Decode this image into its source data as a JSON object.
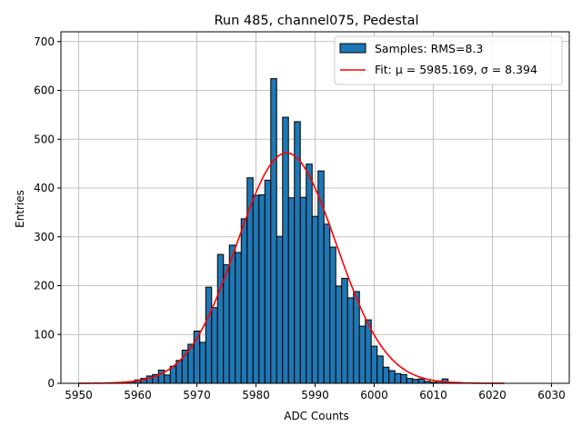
{
  "chart_data": {
    "type": "bar",
    "title": "Run 485, channel075, Pedestal",
    "xlabel": "ADC Counts",
    "ylabel": "Entries",
    "xlim": [
      5947,
      6033
    ],
    "ylim": [
      0,
      720
    ],
    "xticks": [
      5950,
      5960,
      5970,
      5980,
      5990,
      6000,
      6010,
      6020,
      6030
    ],
    "yticks": [
      0,
      100,
      200,
      300,
      400,
      500,
      600,
      700
    ],
    "grid": true,
    "legend_position": "top-right",
    "bin_width": 1,
    "series": [
      {
        "name": "Samples: RMS=8.3",
        "kind": "histogram",
        "color": "#1f77b4",
        "edgecolor": "#000000",
        "bins": [
          [
            5957,
            1
          ],
          [
            5958,
            3
          ],
          [
            5959,
            3
          ],
          [
            5960,
            7
          ],
          [
            5961,
            10
          ],
          [
            5962,
            15
          ],
          [
            5963,
            18
          ],
          [
            5964,
            27
          ],
          [
            5965,
            17
          ],
          [
            5966,
            35
          ],
          [
            5967,
            47
          ],
          [
            5968,
            68
          ],
          [
            5969,
            80
          ],
          [
            5970,
            107
          ],
          [
            5971,
            84
          ],
          [
            5972,
            197
          ],
          [
            5973,
            155
          ],
          [
            5974,
            264
          ],
          [
            5975,
            243
          ],
          [
            5976,
            283
          ],
          [
            5977,
            268
          ],
          [
            5978,
            337
          ],
          [
            5979,
            421
          ],
          [
            5980,
            385
          ],
          [
            5981,
            386
          ],
          [
            5982,
            416
          ],
          [
            5983,
            624
          ],
          [
            5984,
            301
          ],
          [
            5985,
            545
          ],
          [
            5986,
            380
          ],
          [
            5987,
            536
          ],
          [
            5988,
            381
          ],
          [
            5989,
            449
          ],
          [
            5990,
            342
          ],
          [
            5991,
            435
          ],
          [
            5992,
            326
          ],
          [
            5993,
            279
          ],
          [
            5994,
            199
          ],
          [
            5995,
            215
          ],
          [
            5996,
            175
          ],
          [
            5997,
            188
          ],
          [
            5998,
            117
          ],
          [
            5999,
            130
          ],
          [
            6000,
            76
          ],
          [
            6001,
            56
          ],
          [
            6002,
            33
          ],
          [
            6003,
            26
          ],
          [
            6004,
            20
          ],
          [
            6005,
            18
          ],
          [
            6006,
            10
          ],
          [
            6007,
            8
          ],
          [
            6008,
            9
          ],
          [
            6009,
            4
          ],
          [
            6010,
            2
          ],
          [
            6011,
            5
          ],
          [
            6012,
            9
          ],
          [
            6013,
            2
          ],
          [
            6014,
            2
          ],
          [
            6015,
            1
          ],
          [
            6016,
            1
          ]
        ]
      },
      {
        "name": "Fit: μ = 5985.169, σ = 8.394",
        "kind": "gaussian",
        "color": "#ff0000",
        "mu": 5985.169,
        "sigma": 8.394,
        "amplitude": 472,
        "x_range": [
          5950,
          6022
        ]
      }
    ]
  }
}
